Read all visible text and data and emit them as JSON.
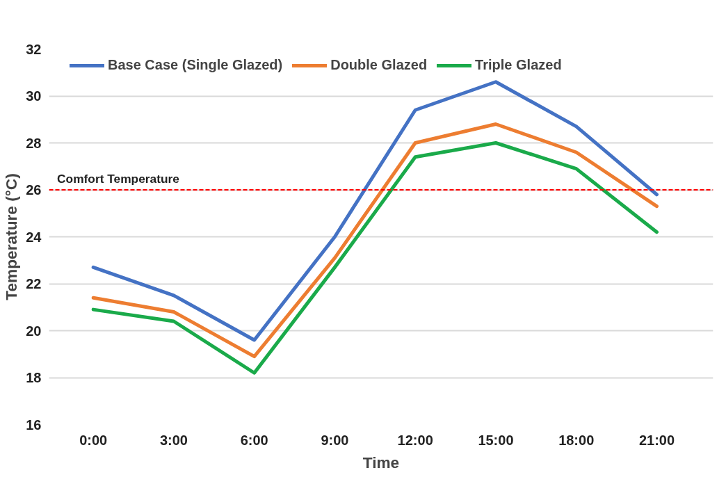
{
  "chart_data": {
    "type": "line",
    "xlabel": "Time",
    "ylabel": "Temperature (°C)",
    "categories": [
      "0:00",
      "3:00",
      "6:00",
      "9:00",
      "12:00",
      "15:00",
      "18:00",
      "21:00"
    ],
    "series": [
      {
        "name": "Base Case (Single Glazed)",
        "color": "#4472c4",
        "values": [
          22.7,
          21.5,
          19.6,
          24.0,
          29.4,
          30.6,
          28.7,
          25.8
        ]
      },
      {
        "name": "Double Glazed",
        "color": "#ed7d31",
        "values": [
          21.4,
          20.8,
          18.9,
          23.1,
          28.0,
          28.8,
          27.6,
          25.3
        ]
      },
      {
        "name": "Triple Glazed",
        "color": "#1aaa4a",
        "values": [
          20.9,
          20.4,
          18.2,
          22.7,
          27.4,
          28.0,
          26.9,
          24.2
        ]
      }
    ],
    "ylim": [
      16,
      32
    ],
    "yticks": [
      16,
      18,
      20,
      22,
      24,
      26,
      28,
      30,
      32
    ],
    "grid": "y",
    "legend": "top",
    "ref_lines": [
      {
        "axis": "y",
        "value": 26,
        "label": "Comfort Temperature",
        "color": "#ff0000",
        "line_style": "dashed"
      }
    ]
  }
}
